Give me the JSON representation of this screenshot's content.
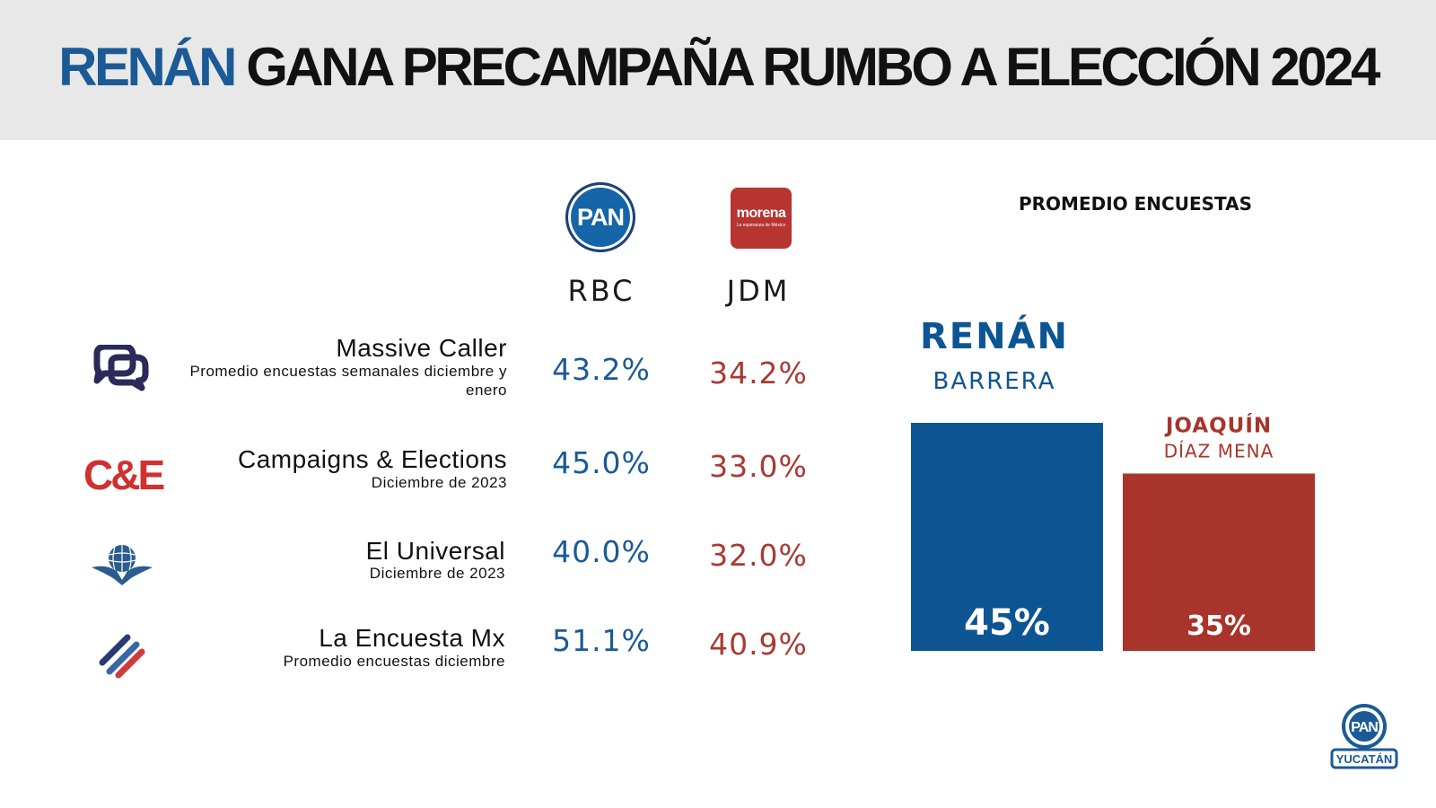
{
  "headline": {
    "highlight": "RENÁN",
    "rest": "GANA PRECAMPAÑA RUMBO A ELECCIÓN 2024"
  },
  "logos": {
    "pan": "PAN",
    "morena": "morena",
    "morena_tagline": "La esperanza de México",
    "pan_yucatan": {
      "pan": "PAN",
      "state": "YUCATÁN"
    }
  },
  "columns": {
    "rbc": "RBC",
    "jdm": "JDM"
  },
  "colors": {
    "pan_blue": "#0d5592",
    "morena_red": "#a8342c"
  },
  "table": {
    "rows": [
      {
        "icon": "massive-caller-logo-icon",
        "name": "Massive Caller",
        "sub": "Promedio encuestas semanales diciembre y enero",
        "rbc": "43.2%",
        "jdm": "34.2%"
      },
      {
        "icon": "campaigns-elections-logo-icon",
        "name": "Campaigns & Elections",
        "sub": "Diciembre de 2023",
        "rbc": "45.0%",
        "jdm": "33.0%",
        "logo_text": "C&E"
      },
      {
        "icon": "el-universal-globe-eagle-icon",
        "name": "El Universal",
        "sub": "Diciembre de 2023",
        "rbc": "40.0%",
        "jdm": "32.0%"
      },
      {
        "icon": "la-encuesta-mx-slashes-icon",
        "name": "La Encuesta Mx",
        "sub": "Promedio encuestas diciembre",
        "rbc": "51.1%",
        "jdm": "40.9%"
      }
    ]
  },
  "chart_data": {
    "type": "bar",
    "title": "PROMEDIO ENCUESTAS",
    "categories": [
      "RENÁN BARRERA",
      "JOAQUÍN DÍAZ MENA"
    ],
    "candidates": [
      {
        "first": "RENÁN",
        "last": "BARRERA",
        "value": 45,
        "label": "45%",
        "color": "#0d5592"
      },
      {
        "first": "JOAQUÍN",
        "last": "DÍAZ MENA",
        "value": 35,
        "label": "35%",
        "color": "#a8342c"
      }
    ],
    "values": [
      45,
      35
    ],
    "unit": "%",
    "grid": false,
    "legend": "none"
  }
}
